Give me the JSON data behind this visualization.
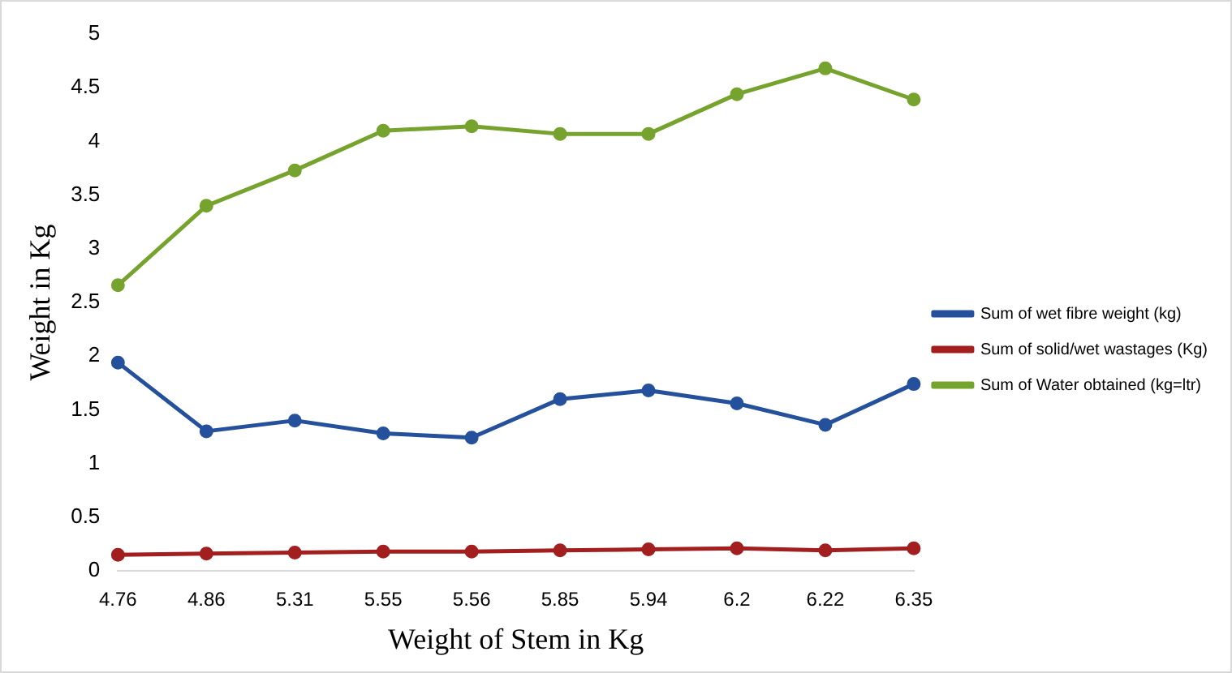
{
  "chart_data": {
    "type": "line",
    "xlabel": "Weight of Stem in Kg",
    "ylabel": "Weight in Kg",
    "categories": [
      "4.76",
      "4.86",
      "5.31",
      "5.55",
      "5.56",
      "5.85",
      "5.94",
      "6.2",
      "6.22",
      "6.35"
    ],
    "series": [
      {
        "name": "Sum of wet fibre weight (kg)",
        "color": "#24509c",
        "values": [
          1.94,
          1.3,
          1.4,
          1.28,
          1.24,
          1.6,
          1.68,
          1.56,
          1.36,
          1.74
        ]
      },
      {
        "name": "Sum of solid/wet wastages (Kg)",
        "color": "#a31e1e",
        "values": [
          0.15,
          0.16,
          0.17,
          0.18,
          0.18,
          0.19,
          0.2,
          0.21,
          0.19,
          0.21
        ]
      },
      {
        "name": "Sum of Water obtained (kg=ltr)",
        "color": "#76a32e",
        "values": [
          2.66,
          3.4,
          3.73,
          4.1,
          4.14,
          4.07,
          4.07,
          4.44,
          4.68,
          4.39
        ]
      }
    ],
    "ylim": [
      0,
      5
    ],
    "yticks": [
      0,
      0.5,
      1,
      1.5,
      2,
      2.5,
      3,
      3.5,
      4,
      4.5,
      5
    ],
    "grid": false,
    "legend": "right",
    "marker": "circle",
    "line_style": "solid"
  }
}
